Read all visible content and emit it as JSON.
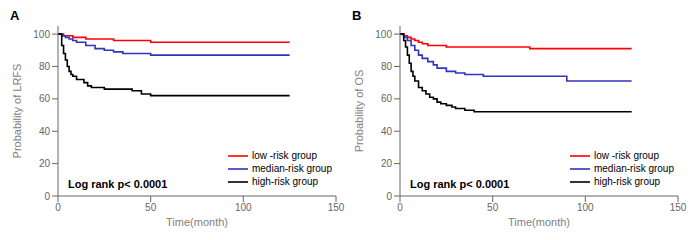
{
  "chart_data": [
    {
      "type": "step",
      "title": "A",
      "xlabel": "Time(month)",
      "ylabel": "Probability of LRFS",
      "annotation": "Log rank p< 0.0001",
      "xlim": [
        0,
        150
      ],
      "ylim": [
        0,
        105
      ],
      "xticks": [
        0,
        50,
        100,
        150
      ],
      "yticks": [
        0,
        20,
        40,
        60,
        80,
        100
      ],
      "grid": false,
      "legend": "lower right",
      "series": [
        {
          "name": "low -risk group",
          "color": "#FF0000",
          "x": [
            0,
            3,
            5,
            8,
            10,
            15,
            20,
            30,
            40,
            50,
            60,
            70,
            80,
            90,
            100,
            110,
            120,
            125
          ],
          "values": [
            100,
            99,
            99,
            98,
            98,
            97,
            97,
            96,
            96,
            95,
            95,
            95,
            95,
            95,
            95,
            95,
            95,
            95
          ]
        },
        {
          "name": "median-risk group",
          "color": "#3333BB",
          "x": [
            0,
            2,
            4,
            6,
            8,
            10,
            15,
            20,
            25,
            30,
            35,
            40,
            50,
            60,
            70,
            80,
            90,
            100,
            110,
            120,
            125
          ],
          "values": [
            100,
            99,
            98,
            97,
            96,
            95,
            93,
            91,
            90,
            89,
            88,
            88,
            87,
            87,
            87,
            87,
            87,
            87,
            87,
            87,
            87
          ]
        },
        {
          "name": "high-risk group",
          "color": "#000000",
          "x": [
            0,
            2,
            3,
            4,
            5,
            6,
            7,
            8,
            10,
            12,
            14,
            16,
            18,
            20,
            25,
            30,
            35,
            40,
            45,
            50,
            55,
            60,
            65,
            70,
            80,
            90,
            100,
            110,
            120,
            125
          ],
          "values": [
            100,
            93,
            88,
            84,
            80,
            77,
            75,
            74,
            72,
            72,
            70,
            68,
            67,
            67,
            66,
            66,
            66,
            65,
            63,
            62,
            62,
            62,
            62,
            62,
            62,
            62,
            62,
            62,
            62,
            62
          ]
        }
      ]
    },
    {
      "type": "step",
      "title": "B",
      "xlabel": "Time(month)",
      "ylabel": "Probability of OS",
      "annotation": "Log rank p< 0.0001",
      "xlim": [
        0,
        150
      ],
      "ylim": [
        0,
        105
      ],
      "xticks": [
        0,
        50,
        100,
        150
      ],
      "yticks": [
        0,
        20,
        40,
        60,
        80,
        100
      ],
      "grid": false,
      "legend": "lower right",
      "series": [
        {
          "name": "low -risk group",
          "color": "#FF0000",
          "x": [
            0,
            2,
            4,
            6,
            8,
            10,
            12,
            15,
            20,
            25,
            30,
            40,
            50,
            60,
            70,
            80,
            90,
            100,
            110,
            120,
            125
          ],
          "values": [
            100,
            99,
            98,
            97,
            96,
            95,
            94,
            93,
            93,
            92,
            92,
            92,
            92,
            92,
            91,
            91,
            91,
            91,
            91,
            91,
            91
          ]
        },
        {
          "name": "median-risk group",
          "color": "#3333BB",
          "x": [
            0,
            2,
            4,
            6,
            8,
            10,
            12,
            15,
            18,
            20,
            25,
            30,
            35,
            40,
            45,
            50,
            60,
            70,
            80,
            90,
            95,
            100,
            110,
            120,
            125
          ],
          "values": [
            100,
            98,
            96,
            93,
            90,
            87,
            85,
            83,
            81,
            79,
            77,
            76,
            75,
            75,
            74,
            74,
            74,
            74,
            74,
            71,
            71,
            71,
            71,
            71,
            71
          ]
        },
        {
          "name": "high-risk group",
          "color": "#000000",
          "x": [
            0,
            2,
            3,
            4,
            5,
            6,
            7,
            8,
            10,
            12,
            14,
            16,
            18,
            20,
            22,
            25,
            28,
            30,
            35,
            40,
            45,
            50,
            55,
            60,
            70,
            80,
            90,
            100,
            110,
            120,
            125
          ],
          "values": [
            100,
            96,
            92,
            87,
            82,
            77,
            74,
            71,
            67,
            65,
            63,
            61,
            60,
            58,
            57,
            56,
            55,
            54,
            53,
            52,
            52,
            52,
            52,
            52,
            52,
            52,
            52,
            52,
            52,
            52,
            52
          ]
        }
      ]
    }
  ]
}
